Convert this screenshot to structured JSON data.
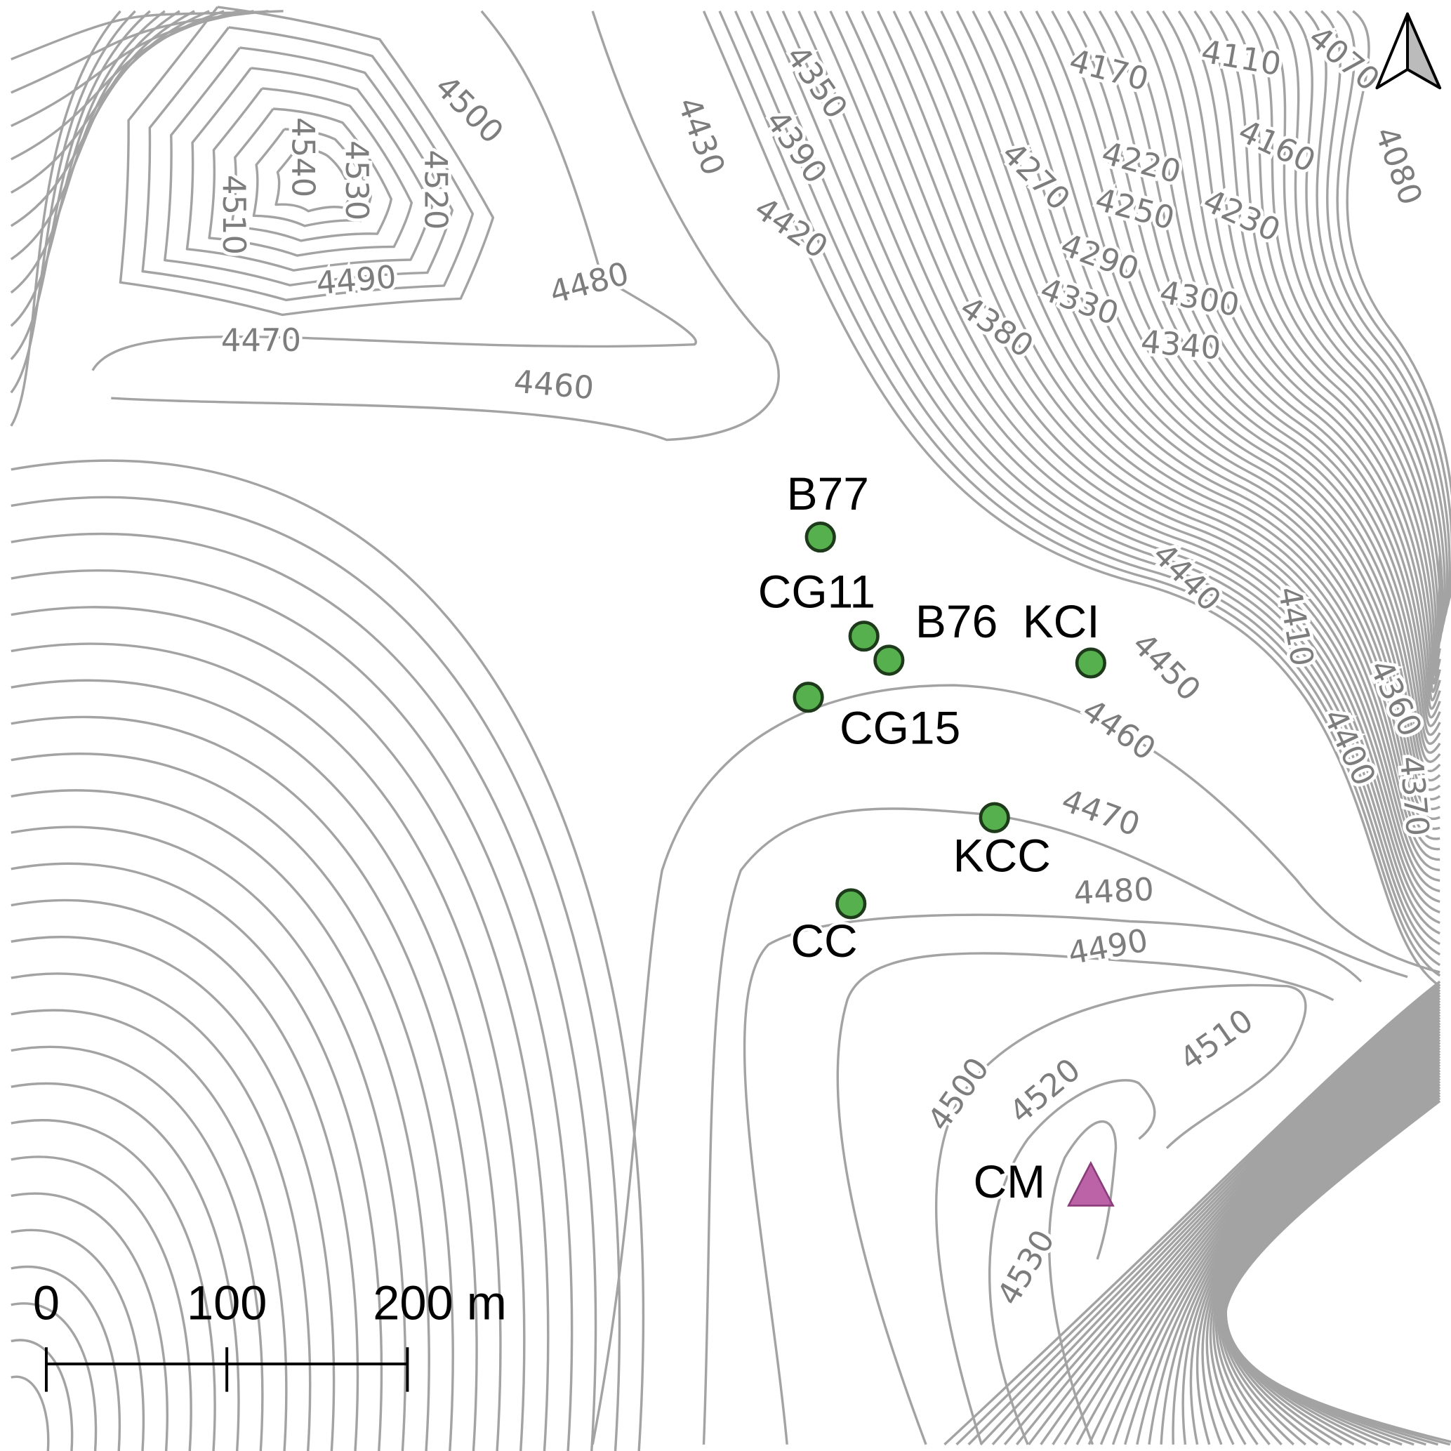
{
  "map": {
    "contour_color": "#a3a3a3",
    "contour_labels": [
      "4540",
      "4530",
      "4520",
      "4510",
      "4500",
      "4490",
      "4480",
      "4470",
      "4460",
      "4430",
      "4350",
      "4390",
      "4420",
      "4170",
      "4110",
      "4070",
      "4160",
      "4080",
      "4220",
      "4270",
      "4250",
      "4230",
      "4290",
      "4300",
      "4330",
      "4340",
      "4380",
      "4440",
      "4410",
      "4450",
      "4360",
      "4460",
      "4400",
      "4370",
      "4470",
      "4480",
      "4490",
      "4510",
      "4500",
      "4520",
      "4530"
    ],
    "sites": [
      {
        "name": "B77",
        "symbol": "circle",
        "color": "#56b04e"
      },
      {
        "name": "CG11",
        "symbol": "circle",
        "color": "#56b04e"
      },
      {
        "name": "B76",
        "symbol": "circle",
        "color": "#56b04e"
      },
      {
        "name": "KCI",
        "symbol": "circle",
        "color": "#56b04e"
      },
      {
        "name": "CG15",
        "symbol": "circle",
        "color": "#56b04e"
      },
      {
        "name": "KCC",
        "symbol": "circle",
        "color": "#56b04e"
      },
      {
        "name": "CC",
        "symbol": "circle",
        "color": "#56b04e"
      },
      {
        "name": "CM",
        "symbol": "triangle",
        "color": "#b5529f"
      }
    ],
    "scale_bar": {
      "labels": [
        "0",
        "100",
        "200 m"
      ]
    },
    "north_arrow": "north-arrow-icon"
  }
}
